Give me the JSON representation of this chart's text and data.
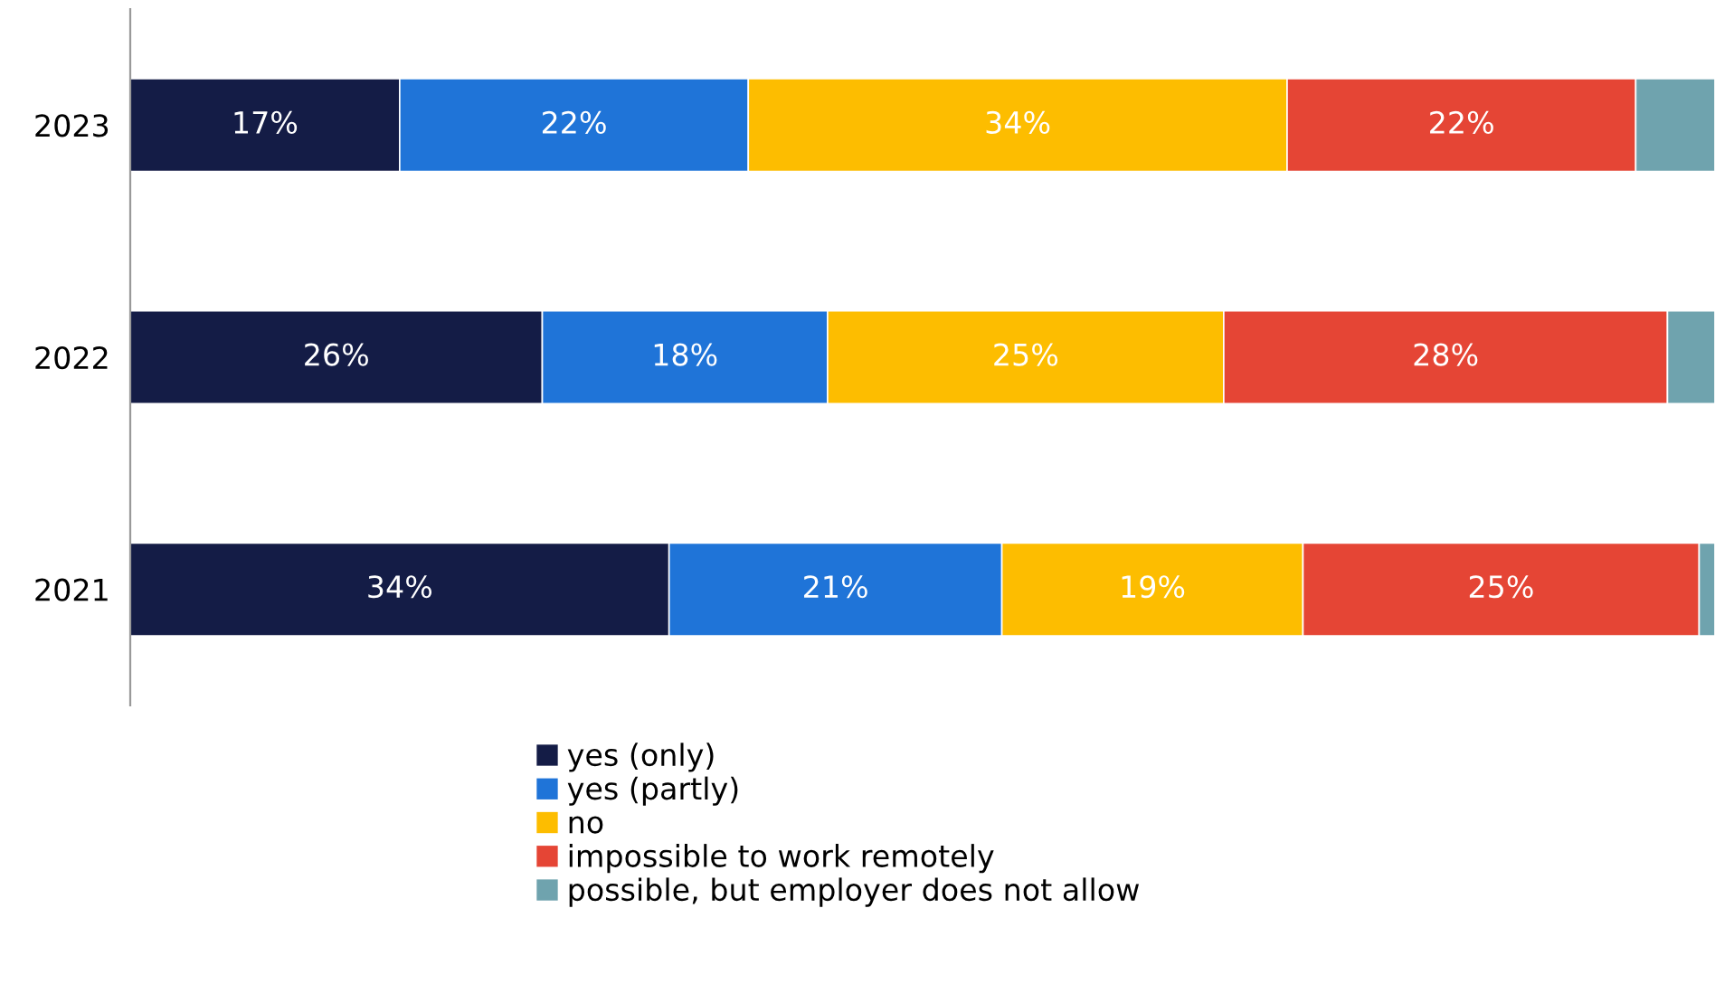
{
  "chart_data": {
    "type": "bar",
    "orientation": "horizontal",
    "stacked": true,
    "categories": [
      "2023",
      "2022",
      "2021"
    ],
    "series": [
      {
        "name": "yes (only)",
        "color": "#141c46",
        "values": [
          17,
          26,
          34
        ],
        "value_labels": [
          "17%",
          "26%",
          "34%"
        ]
      },
      {
        "name": "yes (partly)",
        "color": "#1f74d8",
        "values": [
          22,
          18,
          21
        ],
        "value_labels": [
          "22%",
          "18%",
          "21%"
        ]
      },
      {
        "name": "no",
        "color": "#fdbd00",
        "values": [
          34,
          25,
          19
        ],
        "value_labels": [
          "34%",
          "25%",
          "19%"
        ]
      },
      {
        "name": "impossible to work remotely",
        "color": "#e54535",
        "values": [
          22,
          28,
          25
        ],
        "value_labels": [
          "22%",
          "28%",
          "25%"
        ]
      },
      {
        "name": "possible, but employer does not allow",
        "color": "#6fa3ae",
        "values": [
          5,
          3,
          1
        ],
        "value_labels": [
          null,
          null,
          null
        ]
      }
    ],
    "legend": "bottom",
    "grid": false
  }
}
